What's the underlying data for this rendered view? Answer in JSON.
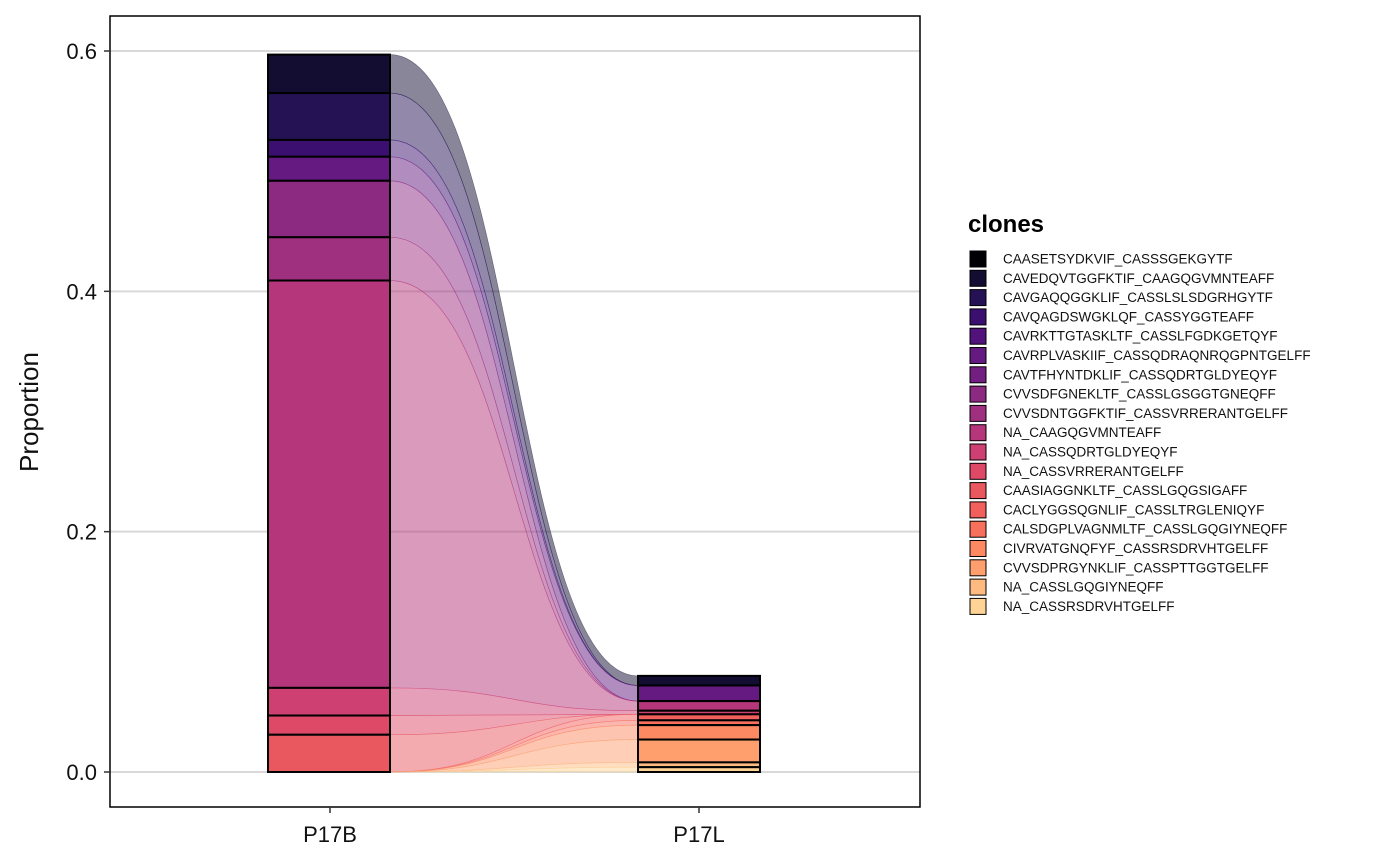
{
  "chart_data": {
    "type": "alluvial",
    "xlabel": "",
    "ylabel": "Proportion",
    "ylim": [
      0,
      0.6
    ],
    "y_ticks": [
      "0.0",
      "0.2",
      "0.4",
      "0.6"
    ],
    "y_tick_values": [
      0,
      0.2,
      0.4,
      0.6
    ],
    "categories": [
      "P17B",
      "P17L"
    ],
    "grid": "horizontal",
    "legend_title": "clones",
    "legend_position": "right",
    "clones": [
      {
        "name": "CAASETSYDKVIF_CASSSGEKGYTF",
        "color": "#000004",
        "values": [
          0,
          0
        ]
      },
      {
        "name": "CAVEDQVTGGFKTIF_CAAGQGVMNTEAFF",
        "color": "#120d31",
        "values": [
          0.032,
          0.008
        ]
      },
      {
        "name": "CAVGAQQGGKLIF_CASSLSLSDGRHGYTF",
        "color": "#251255",
        "values": [
          0.039,
          0
        ]
      },
      {
        "name": "CAVQAGDSWGKLQF_CASSYGGTEAFF",
        "color": "#3b0f70",
        "values": [
          0.014,
          0
        ]
      },
      {
        "name": "CAVRKTTGTASKLTF_CASSLFGDKGETQYF",
        "color": "#51127c",
        "values": [
          0,
          0
        ]
      },
      {
        "name": "CAVRPLVASKIIF_CASSQDRAQNRQGPNTGELFF",
        "color": "#641a80",
        "values": [
          0.02,
          0.013
        ]
      },
      {
        "name": "CAVTFHYNTDKLIF_CASSQDRTGLDYEQYF",
        "color": "#721f81",
        "values": [
          0,
          0
        ]
      },
      {
        "name": "CVVSDFGNEKLTF_CASSLGSGGTGNEQFF",
        "color": "#8c2981",
        "values": [
          0.047,
          0
        ]
      },
      {
        "name": "CVVSDNTGGFKTIF_CASSVRRERANTGELFF",
        "color": "#9f2f7f",
        "values": [
          0.036,
          0
        ]
      },
      {
        "name": "NA_CAAGQGVMNTEAFF",
        "color": "#b5367a",
        "values": [
          0.339,
          0.008
        ]
      },
      {
        "name": "NA_CASSQDRTGLDYEQYF",
        "color": "#cd4071",
        "values": [
          0.023,
          0.003
        ]
      },
      {
        "name": "NA_CASSVRRERANTGELFF",
        "color": "#de4968",
        "values": [
          0.016,
          0
        ]
      },
      {
        "name": "CAASIAGGNKLTF_CASSLGQGSIGAFF",
        "color": "#e9575f",
        "values": [
          0.031,
          0
        ]
      },
      {
        "name": "CACLYGGSQGNLIF_CASSLTRGLENIQYF",
        "color": "#f1605d",
        "values": [
          0,
          0.005
        ]
      },
      {
        "name": "CALSDGPLVAGNMLTF_CASSLGQGIYNEQFF",
        "color": "#f7705c",
        "values": [
          0,
          0.004
        ]
      },
      {
        "name": "CIVRVATGNQFYF_CASSRSDRVHTGELFF",
        "color": "#fc8961",
        "values": [
          0,
          0.012
        ]
      },
      {
        "name": "CVVSDPRGYNKLIF_CASSPTTGGTGELFF",
        "color": "#fe9f6d",
        "values": [
          0,
          0.019
        ]
      },
      {
        "name": "NA_CASSLGQGIYNEQFF",
        "color": "#febb81",
        "values": [
          0,
          0.004
        ]
      },
      {
        "name": "NA_CASSRSDRVHTGELFF",
        "color": "#fed395",
        "values": [
          0,
          0.004
        ]
      }
    ]
  },
  "colors": {
    "legend_swatches": [
      "#000004",
      "#120d31",
      "#251255",
      "#3b0f70",
      "#51127c",
      "#641a80",
      "#721f81",
      "#8c2981",
      "#9f2f7f",
      "#b5367a",
      "#cd4071",
      "#de4968",
      "#e9575f",
      "#f1605d",
      "#f7705c",
      "#fc8961",
      "#fe9f6d",
      "#febb81",
      "#fed395"
    ]
  }
}
